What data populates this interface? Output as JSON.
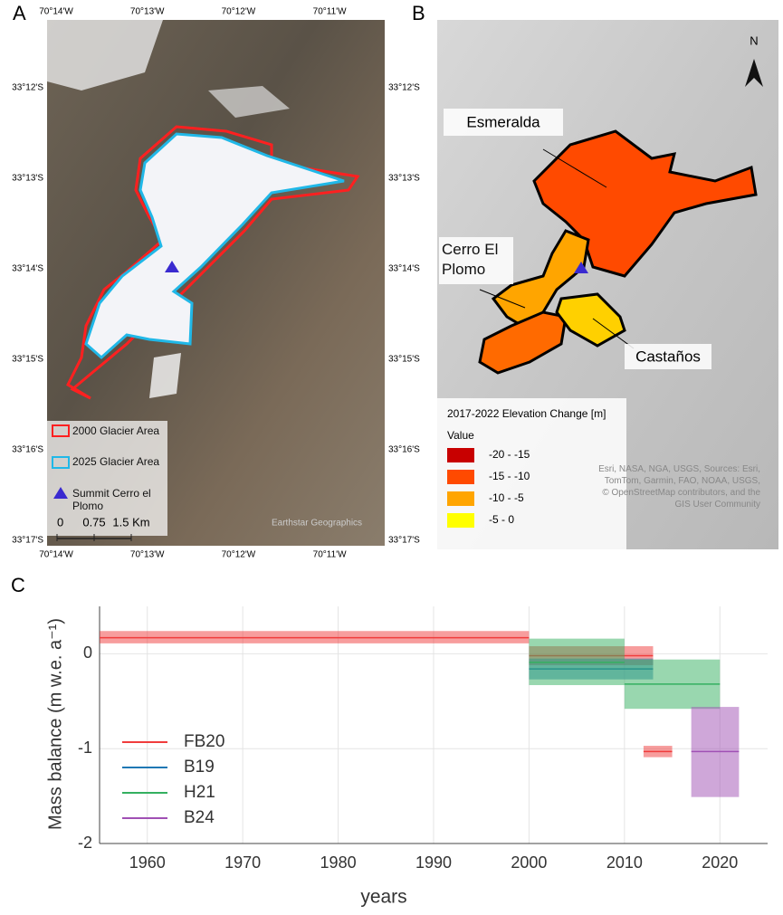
{
  "panels": [
    "A",
    "B",
    "C"
  ],
  "map_a": {
    "lon_labels": [
      "70°14'W",
      "70°13'W",
      "70°12'W",
      "70°11'W"
    ],
    "lat_labels": [
      "33°12'S",
      "33°13'S",
      "33°14'S",
      "33°15'S",
      "33°16'S",
      "33°17'S"
    ],
    "legend": [
      {
        "label": "2000 Glacier Area",
        "color": "#ff2020"
      },
      {
        "label": "2025 Glacier Area",
        "color": "#20b8e8"
      },
      {
        "label": "Summit Cerro el Plomo",
        "color": "#3a2ad0"
      }
    ],
    "scale_labels": [
      "0",
      "0.75",
      "1.5 Km"
    ],
    "attribution": "Earthstar Geographics"
  },
  "map_b": {
    "north": "N",
    "labels": [
      "Esmeralda",
      "Cerro El Plomo",
      "Castaños"
    ],
    "legend_title": "2017-2022 Elevation Change [m]",
    "legend_subtitle": "Value",
    "classes": [
      {
        "label": "-20 - -15",
        "color": "#c80000"
      },
      {
        "label": "-15 - -10",
        "color": "#ff4a00"
      },
      {
        "label": "-10 - -5",
        "color": "#ffa500"
      },
      {
        "label": "-5 - 0",
        "color": "#ffff00"
      }
    ],
    "attribution": "Esri, NASA, NGA, USGS, Sources: Esri, TomTom, Garmin, FAO, NOAA, USGS, © OpenStreetMap contributors, and the GIS User Community"
  },
  "chart_data": {
    "type": "range-box",
    "xlabel": "years",
    "ylabel": "Mass balance (m w.e. a⁻¹)",
    "xlim": [
      1955,
      2025
    ],
    "xticks": [
      1960,
      1970,
      1980,
      1990,
      2000,
      2010,
      2020
    ],
    "ylim": [
      -2,
      0.5
    ],
    "yticks": [
      -2,
      -1,
      0
    ],
    "grid": true,
    "legend": "lower-left",
    "series": [
      {
        "name": "FB20",
        "color": "#f03c3c",
        "x_start": [
          1955,
          2000,
          2012
        ],
        "x_end": [
          2000,
          2013,
          2015
        ],
        "values": [
          0.17,
          -0.02,
          -1.03
        ],
        "low": [
          0.11,
          -0.12,
          -1.09
        ],
        "high": [
          0.24,
          0.08,
          -0.97
        ]
      },
      {
        "name": "B19",
        "color": "#1f78b4",
        "x_start": [
          2000
        ],
        "x_end": [
          2013
        ],
        "values": [
          -0.16
        ],
        "low": [
          -0.27
        ],
        "high": [
          -0.05
        ]
      },
      {
        "name": "H21",
        "color": "#34b060",
        "x_start": [
          2000,
          2010
        ],
        "x_end": [
          2010,
          2020
        ],
        "values": [
          -0.09,
          -0.32
        ],
        "low": [
          -0.33,
          -0.58
        ],
        "high": [
          0.16,
          -0.06
        ]
      },
      {
        "name": "B24",
        "color": "#a050b4",
        "x_start": [
          2017
        ],
        "x_end": [
          2022
        ],
        "values": [
          -1.03
        ],
        "low": [
          -1.51
        ],
        "high": [
          -0.56
        ]
      }
    ]
  }
}
